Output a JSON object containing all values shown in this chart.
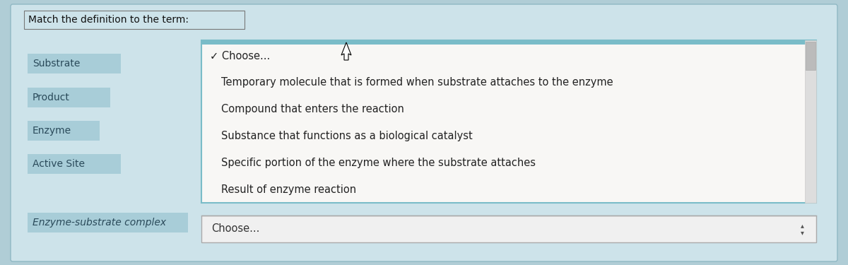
{
  "title": "Match the definition to the term:",
  "bg_color": "#cde3ea",
  "outer_bg": "#b0cdd6",
  "terms": [
    "Substrate",
    "Product",
    "Enzyme",
    "Active Site",
    "Enzyme-substrate complex"
  ],
  "term_box_color": "#a8cdd8",
  "term_text_color": "#2a4a5a",
  "dropdown_bg": "#f8f7f5",
  "dropdown_border": "#88c8d0",
  "dropdown_items": [
    "✓ Choose...",
    "Temporary molecule that is formed when substrate attaches to the enzyme",
    "Compound that enters the reaction",
    "Substance that functions as a biological catalyst",
    "Specific portion of the enzyme where the substrate attaches",
    "Result of enzyme reaction"
  ],
  "bottom_choose_text": "Choose...",
  "bottom_box_bg": "#eeeeee",
  "bottom_box_border": "#aaaaaa",
  "scrollbar_bg": "#dddddd",
  "scrollbar_thumb": "#bbbbbb"
}
